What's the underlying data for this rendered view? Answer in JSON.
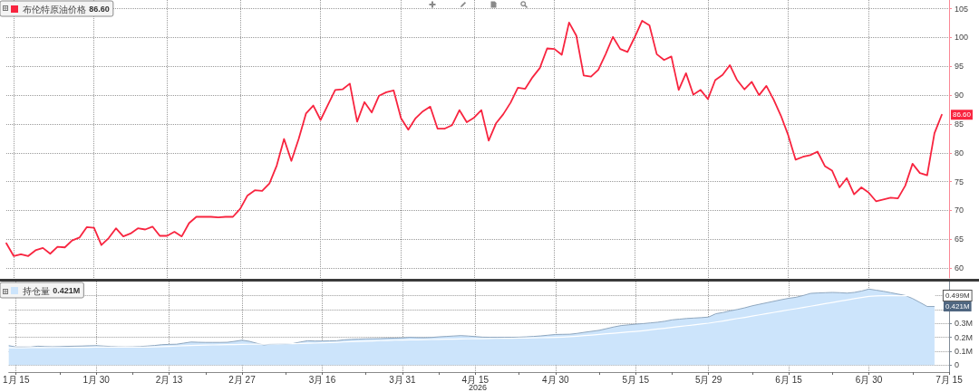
{
  "chart_data": [
    {
      "type": "line",
      "categories": [
        null,
        null,
        null,
        null,
        null,
        null,
        null,
        null,
        null,
        null,
        null,
        null,
        null,
        null,
        null,
        null,
        null,
        null,
        null,
        null,
        null,
        null,
        null,
        null,
        null,
        null,
        null,
        null,
        null,
        null,
        null,
        null,
        null,
        null,
        null,
        null,
        null,
        null,
        null,
        null,
        null,
        null,
        null,
        null,
        null,
        null,
        null,
        null,
        null,
        null,
        null,
        null,
        null,
        null,
        null,
        null,
        null,
        null,
        null,
        null,
        null,
        null,
        null,
        null,
        null,
        null,
        null,
        null,
        null,
        null,
        null,
        null,
        null,
        null,
        null,
        null,
        null,
        null,
        null,
        null,
        null,
        null,
        null,
        null,
        null,
        null,
        null,
        null,
        null,
        null,
        null,
        null,
        null,
        null,
        null,
        null,
        null,
        null,
        null,
        null,
        null,
        null,
        null,
        null,
        null,
        null,
        null,
        null,
        null,
        null,
        null,
        null,
        null,
        null,
        null,
        null,
        null,
        null,
        null,
        null,
        null,
        null,
        null,
        null,
        null,
        null,
        null,
        null,
        null,
        null
      ],
      "series": [
        {
          "name": "布伦特原油价格",
          "color": "#f8243f",
          "values": [
            64.3,
            62.1,
            62.4,
            62.1,
            63.1,
            63.5,
            62.5,
            63.7,
            63.6,
            64.8,
            65.3,
            67.1,
            67.0,
            64.0,
            65.2,
            66.9,
            65.5,
            66.0,
            66.9,
            66.7,
            67.2,
            65.6,
            65.6,
            66.3,
            65.5,
            67.8,
            68.9,
            68.9,
            68.9,
            68.8,
            68.9,
            68.9,
            70.3,
            72.6,
            73.5,
            73.4,
            74.7,
            77.8,
            82.4,
            78.6,
            82.4,
            86.8,
            88.2,
            85.7,
            88.3,
            90.9,
            91.0,
            92.0,
            85.4,
            88.8,
            87.0,
            89.9,
            90.5,
            90.8,
            86.0,
            84.0,
            86.0,
            87.2,
            88.0,
            84.2,
            84.2,
            84.8,
            87.4,
            85.3,
            86.1,
            87.4,
            82.1,
            85.1,
            86.7,
            88.7,
            91.3,
            91.1,
            93.1,
            94.7,
            98.1,
            98.0,
            97.0,
            102.6,
            100.3,
            93.4,
            93.2,
            94.4,
            97.1,
            100.1,
            98.0,
            97.5,
            100.1,
            102.9,
            102.1,
            97.1,
            96.1,
            96.7,
            90.9,
            93.8,
            90.1,
            90.9,
            89.3,
            92.6,
            93.5,
            95.2,
            92.6,
            91.0,
            92.3,
            90.0,
            91.6,
            89.2,
            86.4,
            83.0,
            78.8,
            79.3,
            79.6,
            80.2,
            77.7,
            76.9,
            74.0,
            75.6,
            72.8,
            74.0,
            73.1,
            71.6,
            71.9,
            72.2,
            72.1,
            74.3,
            78.1,
            76.5,
            76.1,
            83.4,
            86.6,
            null
          ],
          "value_labels": [
            null,
            null,
            null,
            null,
            null,
            null,
            null,
            null,
            null,
            null,
            null,
            null,
            null,
            null,
            null,
            null,
            null,
            null,
            null,
            null,
            null,
            null,
            null,
            null,
            null,
            null,
            null,
            null,
            null,
            null,
            null,
            null,
            null,
            null,
            null,
            null,
            null,
            null,
            null,
            null,
            null,
            null,
            null,
            null,
            null,
            null,
            null,
            null,
            null,
            null,
            null,
            null,
            null,
            null,
            null,
            null,
            null,
            null,
            null,
            null,
            null,
            null,
            null,
            null,
            null,
            null,
            null,
            null,
            null,
            null,
            null,
            null,
            null,
            null,
            null,
            null,
            null,
            null,
            null,
            null,
            null,
            null,
            null,
            null,
            null,
            null,
            null,
            null,
            null,
            null,
            null,
            null,
            null,
            null,
            null,
            null,
            null,
            null,
            null,
            null,
            null,
            null,
            null,
            null,
            null,
            null,
            null,
            null,
            null,
            null,
            null,
            null,
            null,
            null,
            null,
            null,
            null,
            null,
            null,
            null,
            null,
            null,
            null,
            null,
            null,
            null,
            null,
            null,
            "86.60",
            null
          ]
        }
      ],
      "ylim": [
        58.3,
        106.5
      ],
      "yticks": [
        60,
        65,
        70,
        75,
        80,
        85,
        90,
        95,
        100,
        105
      ],
      "grid": true,
      "legend": "top left",
      "tick_labels": "y",
      "marker": "none"
    },
    {
      "type": "area",
      "categories": [
        null,
        "1月 15",
        null,
        null,
        null,
        null,
        null,
        null,
        null,
        null,
        null,
        null,
        "1月 30",
        null,
        null,
        null,
        null,
        null,
        null,
        null,
        null,
        null,
        "2月 13",
        null,
        null,
        null,
        null,
        null,
        null,
        null,
        null,
        null,
        "2月 27",
        null,
        null,
        null,
        null,
        null,
        null,
        null,
        null,
        null,
        null,
        "3月 16",
        null,
        null,
        null,
        null,
        null,
        null,
        null,
        null,
        null,
        null,
        "3月 31",
        null,
        null,
        null,
        null,
        null,
        null,
        null,
        null,
        null,
        "4月 15",
        null,
        null,
        null,
        null,
        null,
        null,
        null,
        null,
        null,
        null,
        "4月 30",
        null,
        null,
        null,
        null,
        null,
        null,
        null,
        null,
        null,
        null,
        "5月 15",
        null,
        null,
        null,
        null,
        null,
        null,
        null,
        null,
        null,
        "5月 29",
        null,
        null,
        null,
        null,
        null,
        null,
        null,
        null,
        null,
        null,
        "6月 15",
        null,
        null,
        null,
        null,
        null,
        null,
        null,
        null,
        null,
        null,
        "6月 30",
        null,
        null,
        null,
        null,
        null,
        null,
        null,
        null,
        null,
        null,
        "7月 15"
      ],
      "series": [
        {
          "name": "持仓量",
          "color": "#cce4fb",
          "values": [
            0.14,
            0.13,
            0.13,
            0.13,
            0.136,
            0.133,
            0.132,
            0.133,
            0.135,
            0.136,
            0.137,
            0.139,
            0.14,
            0.137,
            0.134,
            0.132,
            0.131,
            0.132,
            0.134,
            0.137,
            0.141,
            0.147,
            0.149,
            0.15,
            0.158,
            0.166,
            0.164,
            0.163,
            0.163,
            0.163,
            0.164,
            0.171,
            0.179,
            0.171,
            0.157,
            0.145,
            0.151,
            0.153,
            0.153,
            0.155,
            0.166,
            0.175,
            0.173,
            0.173,
            0.174,
            0.175,
            0.182,
            0.185,
            0.187,
            0.189,
            0.19,
            0.191,
            0.193,
            0.194,
            0.196,
            0.2,
            0.198,
            0.197,
            0.199,
            0.203,
            0.206,
            0.209,
            0.212,
            0.209,
            0.205,
            0.201,
            0.2,
            0.2,
            0.2,
            0.2,
            0.201,
            0.203,
            0.206,
            0.21,
            0.215,
            0.22,
            0.221,
            0.222,
            0.228,
            0.236,
            0.243,
            0.25,
            0.262,
            0.274,
            0.284,
            0.289,
            0.294,
            0.298,
            0.303,
            0.308,
            0.315,
            0.325,
            0.33,
            0.335,
            0.338,
            0.341,
            0.345,
            0.369,
            0.378,
            0.39,
            0.4,
            0.412,
            0.426,
            0.437,
            0.448,
            0.459,
            0.47,
            0.48,
            0.487,
            0.5,
            0.515,
            0.518,
            0.52,
            0.522,
            0.52,
            0.517,
            0.522,
            0.532,
            0.546,
            0.538,
            0.53,
            0.52,
            0.51,
            0.5,
            0.478,
            0.45,
            0.421,
            0.421,
            null,
            null
          ],
          "value_labels": [
            null,
            null,
            null,
            null,
            null,
            null,
            null,
            null,
            null,
            null,
            null,
            null,
            null,
            null,
            null,
            null,
            null,
            null,
            null,
            null,
            null,
            null,
            null,
            null,
            null,
            null,
            null,
            null,
            null,
            null,
            null,
            null,
            null,
            null,
            null,
            null,
            null,
            null,
            null,
            null,
            null,
            null,
            null,
            null,
            null,
            null,
            null,
            null,
            null,
            null,
            null,
            null,
            null,
            null,
            null,
            null,
            null,
            null,
            null,
            null,
            null,
            null,
            null,
            null,
            null,
            null,
            null,
            null,
            null,
            null,
            null,
            null,
            null,
            null,
            null,
            null,
            null,
            null,
            null,
            null,
            null,
            null,
            null,
            null,
            null,
            null,
            null,
            null,
            null,
            null,
            null,
            null,
            null,
            null,
            null,
            null,
            null,
            null,
            null,
            null,
            null,
            null,
            null,
            null,
            null,
            null,
            null,
            null,
            null,
            null,
            null,
            null,
            null,
            null,
            null,
            null,
            null,
            null,
            null,
            null,
            null,
            null,
            null,
            null,
            null,
            null,
            null,
            "0.421M",
            null,
            null
          ]
        },
        {
          "type": "line",
          "color": "#ffffff",
          "values": [
            0.125,
            0.125,
            0.125,
            0.126,
            0.126,
            0.126,
            0.127,
            0.127,
            0.127,
            0.128,
            0.128,
            0.128,
            0.129,
            0.129,
            0.129,
            0.129,
            0.129,
            0.129,
            0.13,
            0.13,
            0.131,
            0.133,
            0.135,
            0.137,
            0.139,
            0.141,
            0.143,
            0.144,
            0.145,
            0.146,
            0.147,
            0.148,
            0.149,
            0.15,
            0.151,
            0.151,
            0.152,
            0.152,
            0.153,
            0.154,
            0.155,
            0.157,
            0.158,
            0.16,
            0.162,
            0.164,
            0.166,
            0.168,
            0.17,
            0.172,
            0.174,
            0.176,
            0.177,
            0.179,
            0.18,
            0.181,
            0.182,
            0.183,
            0.184,
            0.185,
            0.186,
            0.187,
            0.188,
            0.189,
            0.19,
            0.19,
            0.191,
            0.192,
            0.193,
            0.193,
            0.194,
            0.195,
            0.196,
            0.197,
            0.198,
            0.199,
            0.201,
            0.204,
            0.208,
            0.212,
            0.216,
            0.221,
            0.225,
            0.229,
            0.233,
            0.238,
            0.242,
            0.247,
            0.253,
            0.259,
            0.265,
            0.271,
            0.277,
            0.283,
            0.289,
            0.295,
            0.301,
            0.309,
            0.317,
            0.326,
            0.335,
            0.343,
            0.352,
            0.361,
            0.37,
            0.379,
            0.388,
            0.397,
            0.405,
            0.414,
            0.423,
            0.432,
            0.441,
            0.45,
            0.459,
            0.468,
            0.477,
            0.486,
            0.494,
            0.497,
            0.498,
            0.498,
            0.499,
            0.499,
            0.499,
            0.499,
            0.499,
            0.499,
            null,
            null
          ],
          "value_labels": [
            null,
            null,
            null,
            null,
            null,
            null,
            null,
            null,
            null,
            null,
            null,
            null,
            null,
            null,
            null,
            null,
            null,
            null,
            null,
            null,
            null,
            null,
            null,
            null,
            null,
            null,
            null,
            null,
            null,
            null,
            null,
            null,
            null,
            null,
            null,
            null,
            null,
            null,
            null,
            null,
            null,
            null,
            null,
            null,
            null,
            null,
            null,
            null,
            null,
            null,
            null,
            null,
            null,
            null,
            null,
            null,
            null,
            null,
            null,
            null,
            null,
            null,
            null,
            null,
            null,
            null,
            null,
            null,
            null,
            null,
            null,
            null,
            null,
            null,
            null,
            null,
            null,
            null,
            null,
            null,
            null,
            null,
            null,
            null,
            null,
            null,
            null,
            null,
            null,
            null,
            null,
            null,
            null,
            null,
            null,
            null,
            null,
            null,
            null,
            null,
            null,
            null,
            null,
            null,
            null,
            null,
            null,
            null,
            null,
            null,
            null,
            null,
            null,
            null,
            null,
            null,
            null,
            null,
            null,
            null,
            null,
            null,
            null,
            null,
            null,
            null,
            null,
            "0.499M",
            null,
            null
          ]
        }
      ],
      "ylim": [
        -0.05,
        0.6
      ],
      "yticks": [
        0,
        {
          "value": 0.1,
          "label": "0.1M"
        },
        {
          "value": 0.2,
          "label": "0.2M"
        },
        {
          "value": 0.3,
          "label": "0.3M"
        },
        {
          "value": 0.4,
          "label": null
        },
        {
          "value": 0.5,
          "label": null
        }
      ],
      "grid": true,
      "legend": "top left",
      "marker": "none",
      "annotations": [
        "2026"
      ]
    }
  ]
}
